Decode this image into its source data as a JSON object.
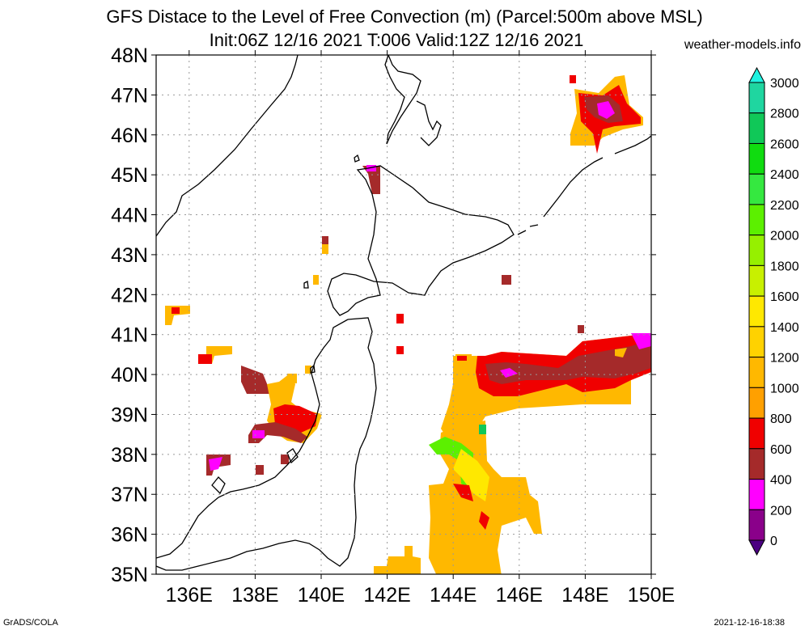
{
  "header": {
    "title_line1": "GFS Distace to the Level of Free Convection (m) (Parcel:500m above MSL)",
    "title_line2": "Init:06Z 12/16 2021 T:006 Valid:12Z 12/16 2021",
    "site": "weather-models.info"
  },
  "footer": {
    "left": "GrADS/COLA",
    "right": "2021-12-16-18:38"
  },
  "map": {
    "lat_labels": [
      "48N",
      "47N",
      "46N",
      "45N",
      "44N",
      "43N",
      "42N",
      "41N",
      "40N",
      "39N",
      "38N",
      "37N",
      "36N",
      "35N"
    ],
    "lon_labels": [
      "136E",
      "138E",
      "140E",
      "142E",
      "144E",
      "146E",
      "148E",
      "150E"
    ],
    "lat_range": [
      35,
      48
    ],
    "lon_range": [
      135,
      150
    ],
    "grid": "dotted"
  },
  "colorbar": {
    "labels": [
      "3000",
      "2800",
      "2600",
      "2400",
      "2200",
      "2000",
      "1800",
      "1600",
      "1400",
      "1200",
      "1000",
      "800",
      "600",
      "400",
      "200",
      "0"
    ],
    "colors": [
      "#1ff2e0",
      "#1fd6a0",
      "#10c858",
      "#10dc10",
      "#35e840",
      "#5cf000",
      "#96f000",
      "#c8f000",
      "#ffe800",
      "#ffd200",
      "#ffb800",
      "#ffa000",
      "#f00000",
      "#a52a2a",
      "#ff00ff",
      "#8a008a",
      "#4b0082"
    ]
  }
}
